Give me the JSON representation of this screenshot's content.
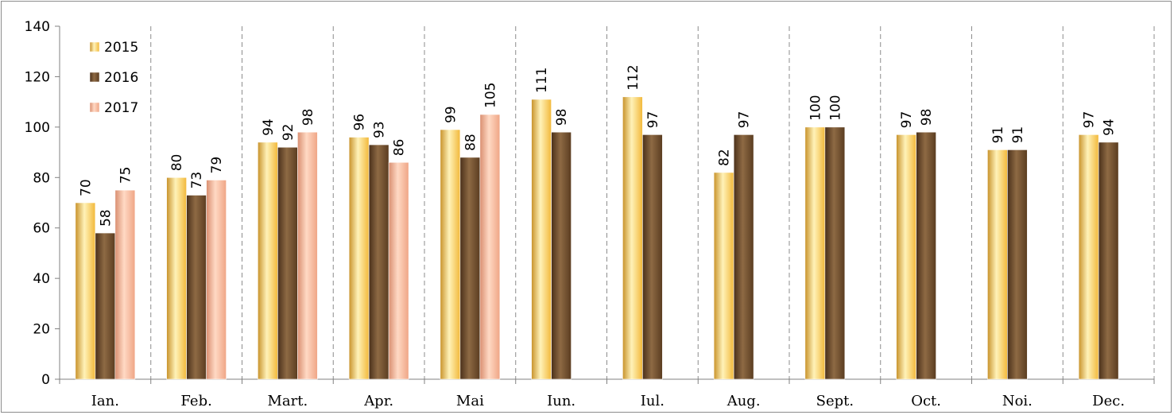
{
  "chart_data": {
    "type": "bar",
    "categories": [
      "Ian.",
      "Feb.",
      "Mart.",
      "Apr.",
      "Mai",
      "Iun.",
      "Iul.",
      "Aug.",
      "Sept.",
      "Oct.",
      "Noi.",
      "Dec."
    ],
    "series": [
      {
        "name": "2015",
        "values": [
          70,
          80,
          94,
          96,
          99,
          111,
          112,
          82,
          100,
          97,
          91,
          97
        ],
        "labels": [
          "70",
          "80",
          "94",
          "96",
          "99",
          "111",
          "112",
          "82",
          "100",
          "97",
          "91",
          "97"
        ],
        "color": "#F5C242"
      },
      {
        "name": "2016",
        "values": [
          58,
          73,
          92,
          93,
          88,
          98,
          97,
          97,
          100,
          98,
          91,
          94
        ],
        "labels": [
          "58",
          "73",
          "92",
          "93",
          "88",
          "98",
          "97",
          "97",
          "100",
          "98",
          "91",
          "94"
        ],
        "color": "#6B4A2A"
      },
      {
        "name": "2017",
        "values": [
          75,
          79,
          98,
          86,
          105,
          null,
          null,
          null,
          null,
          null,
          null,
          null
        ],
        "labels": [
          "75",
          "79",
          "98",
          "86",
          "105",
          "",
          "",
          "",
          "",
          "",
          "",
          ""
        ],
        "color": "#F2A98C"
      }
    ],
    "yticks": [
      "0",
      "20",
      "40",
      "60",
      "80",
      "100",
      "120",
      "140"
    ],
    "ylim": [
      0,
      140
    ],
    "grid": "vertical dashed category separators",
    "legend_position": "top-left"
  }
}
